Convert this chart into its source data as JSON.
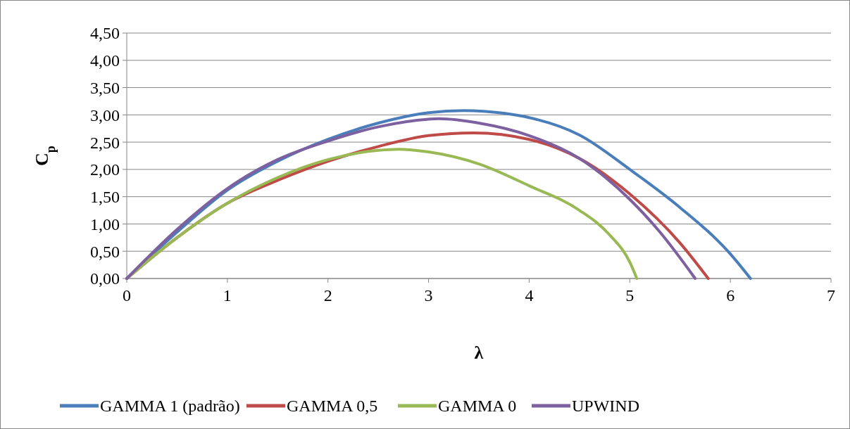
{
  "chart_data": {
    "type": "line",
    "xlabel": "λ",
    "ylabel": "C$_{p}$",
    "xlim": [
      0,
      7
    ],
    "xticks": [
      0,
      1,
      2,
      3,
      4,
      5,
      6,
      7
    ],
    "ylim": [
      0,
      4.5
    ],
    "yticks": [
      {
        "value": 0,
        "label": "0,00"
      },
      {
        "value": 0.5,
        "label": "0,50"
      },
      {
        "value": 1,
        "label": "1,00"
      },
      {
        "value": 1.5,
        "label": "1,50"
      },
      {
        "value": 2,
        "label": "2,00"
      },
      {
        "value": 2.5,
        "label": "2,50"
      },
      {
        "value": 3,
        "label": "3,00"
      },
      {
        "value": 3.5,
        "label": "3,50"
      },
      {
        "value": 4,
        "label": "4,00"
      },
      {
        "value": 4.5,
        "label": "4,50"
      }
    ],
    "grid": "y",
    "legend": "bottom",
    "marker": "none",
    "line_style": "solid",
    "series": [
      {
        "name": "GAMMA 1 (padrão)",
        "color": "#4a7ebb",
        "x": [
          0,
          0.5,
          1,
          1.5,
          2,
          2.5,
          3,
          3.35,
          3.75,
          4,
          4.5,
          5,
          5.5,
          6,
          6.2
        ],
        "values": [
          0,
          0.85,
          1.62,
          2.15,
          2.55,
          2.85,
          3.04,
          3.08,
          3.03,
          2.95,
          2.63,
          2.0,
          1.3,
          0.45,
          0
        ]
      },
      {
        "name": "GAMMA 0,5",
        "color": "#be4b48",
        "x": [
          0,
          0.5,
          1,
          1.5,
          2,
          2.5,
          3,
          3.45,
          4,
          4.5,
          5,
          5.5,
          5.78
        ],
        "values": [
          0,
          0.75,
          1.38,
          1.8,
          2.15,
          2.42,
          2.62,
          2.67,
          2.55,
          2.2,
          1.55,
          0.65,
          0
        ]
      },
      {
        "name": "GAMMA 0",
        "color": "#98b954",
        "x": [
          0,
          0.5,
          1,
          1.5,
          2,
          2.5,
          2.7,
          3,
          3.5,
          4,
          4.5,
          4.8,
          5,
          5.07
        ],
        "values": [
          0,
          0.75,
          1.38,
          1.85,
          2.18,
          2.35,
          2.37,
          2.32,
          2.1,
          1.7,
          1.25,
          0.8,
          0.3,
          0
        ]
      },
      {
        "name": "UPWIND",
        "color": "#7d60a0",
        "x": [
          0,
          0.5,
          1,
          1.5,
          2,
          2.5,
          3,
          3.1,
          3.5,
          4,
          4.5,
          5,
          5.3,
          5.65
        ],
        "values": [
          0,
          0.9,
          1.65,
          2.18,
          2.52,
          2.78,
          2.92,
          2.93,
          2.85,
          2.62,
          2.2,
          1.45,
          0.85,
          0
        ]
      }
    ]
  }
}
